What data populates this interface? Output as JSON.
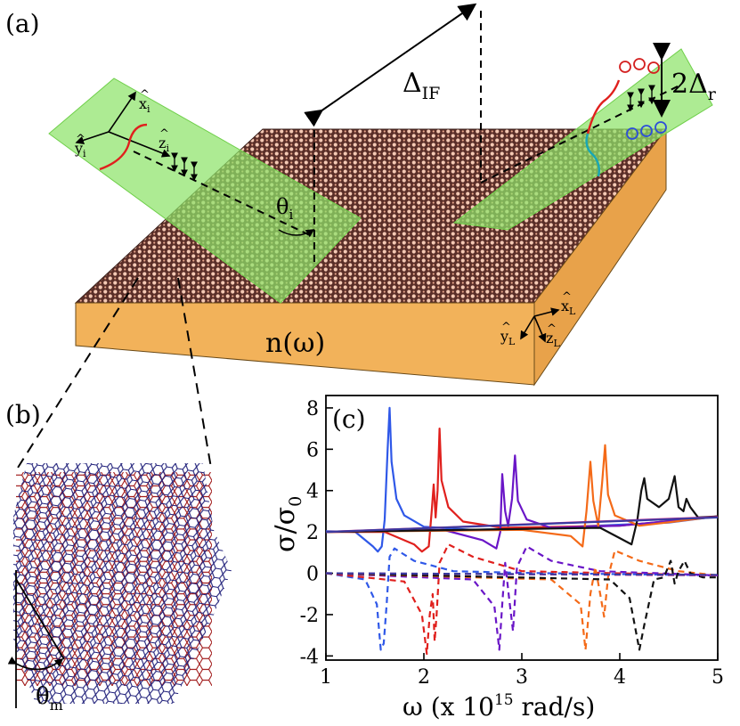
{
  "panels": {
    "a": "(a)",
    "b": "(b)",
    "c": "(c)"
  },
  "diagram": {
    "delta_if": {
      "base": "Δ",
      "sub": "IF"
    },
    "delta_r": {
      "prefix": "2Δ",
      "sub": "r"
    },
    "theta_i": {
      "base": "θ",
      "sub": "i"
    },
    "theta_m": {
      "base": "θ",
      "sub": "m"
    },
    "refractive_index": "n(ω)",
    "incident_axes": {
      "x": "x",
      "x_sub": "i",
      "y": "y",
      "y_sub": "i",
      "z": "z",
      "z_sub": "i",
      "hat": "^"
    },
    "lab_axes": {
      "x": "x",
      "x_sub": "L",
      "y": "y",
      "y_sub": "L",
      "z": "z",
      "z_sub": "L",
      "hat": "^"
    }
  },
  "colors": {
    "slab_top": "#b88570",
    "slab_side": "#f2b25a",
    "beam_plane": "#8ee36a",
    "lattice_red": "#a01818",
    "lattice_blue": "#1c1c78",
    "sigma_up": "#d42020",
    "sigma_down": "#2d4fd8",
    "spin_cyan": "#18a7b5"
  },
  "chart_data": {
    "type": "line",
    "title": "",
    "xlabel": {
      "text": "ω (x 10",
      "sup": "15",
      "tail": " rad/s)"
    },
    "ylabel": {
      "base": "σ/σ",
      "sub": "0"
    },
    "xlim": [
      1,
      5
    ],
    "ylim": [
      -4.2,
      8.6
    ],
    "xticks": [
      "1",
      "2",
      "3",
      "4",
      "5"
    ],
    "yticks": [
      "-4",
      "-2",
      "0",
      "2",
      "4",
      "6",
      "8"
    ],
    "series": [
      {
        "name": "blue",
        "color": "#2f58e8",
        "real": [
          [
            1,
            2.03
          ],
          [
            1.3,
            2.0
          ],
          [
            1.48,
            1.3
          ],
          [
            1.53,
            1.05
          ],
          [
            1.57,
            1.3
          ],
          [
            1.6,
            2.6
          ],
          [
            1.63,
            6.0
          ],
          [
            1.65,
            8.0
          ],
          [
            1.67,
            5.4
          ],
          [
            1.72,
            3.6
          ],
          [
            1.8,
            2.8
          ],
          [
            2.0,
            2.25
          ],
          [
            2.5,
            2.1
          ],
          [
            3.5,
            2.25
          ],
          [
            4.5,
            2.45
          ],
          [
            5.0,
            2.75
          ]
        ],
        "imag": [
          [
            1,
            0.0
          ],
          [
            1.4,
            -0.3
          ],
          [
            1.52,
            -1.5
          ],
          [
            1.56,
            -3.7
          ],
          [
            1.59,
            -3.4
          ],
          [
            1.62,
            -1.5
          ],
          [
            1.65,
            0.8
          ],
          [
            1.7,
            1.2
          ],
          [
            1.9,
            0.6
          ],
          [
            2.3,
            0.1
          ],
          [
            3.0,
            0.02
          ],
          [
            5.0,
            -0.1
          ]
        ]
      },
      {
        "name": "red",
        "color": "#e0201d",
        "real": [
          [
            1,
            2.0
          ],
          [
            1.6,
            2.0
          ],
          [
            1.9,
            1.4
          ],
          [
            1.98,
            1.05
          ],
          [
            2.05,
            1.3
          ],
          [
            2.08,
            3.0
          ],
          [
            2.1,
            4.3
          ],
          [
            2.12,
            2.7
          ],
          [
            2.14,
            4.0
          ],
          [
            2.16,
            7.0
          ],
          [
            2.18,
            4.5
          ],
          [
            2.25,
            3.2
          ],
          [
            2.4,
            2.5
          ],
          [
            2.8,
            2.2
          ],
          [
            4.0,
            2.3
          ],
          [
            5.0,
            2.75
          ]
        ],
        "imag": [
          [
            1,
            0.0
          ],
          [
            1.8,
            -0.4
          ],
          [
            1.98,
            -2.0
          ],
          [
            2.03,
            -3.9
          ],
          [
            2.06,
            -2.0
          ],
          [
            2.09,
            -1.0
          ],
          [
            2.11,
            -3.3
          ],
          [
            2.13,
            -2.0
          ],
          [
            2.16,
            0.5
          ],
          [
            2.25,
            1.4
          ],
          [
            2.5,
            0.8
          ],
          [
            3.0,
            0.1
          ],
          [
            5.0,
            -0.1
          ]
        ]
      },
      {
        "name": "purple",
        "color": "#6a16c7",
        "real": [
          [
            1,
            2.0
          ],
          [
            2.2,
            2.1
          ],
          [
            2.6,
            1.6
          ],
          [
            2.74,
            1.2
          ],
          [
            2.78,
            2.0
          ],
          [
            2.8,
            4.8
          ],
          [
            2.83,
            3.0
          ],
          [
            2.86,
            2.3
          ],
          [
            2.9,
            3.6
          ],
          [
            2.93,
            5.7
          ],
          [
            2.96,
            3.5
          ],
          [
            3.05,
            2.6
          ],
          [
            3.3,
            2.2
          ],
          [
            4.0,
            2.3
          ],
          [
            5.0,
            2.75
          ]
        ],
        "imag": [
          [
            1,
            0.0
          ],
          [
            2.5,
            -0.3
          ],
          [
            2.72,
            -1.6
          ],
          [
            2.77,
            -3.7
          ],
          [
            2.8,
            -1.5
          ],
          [
            2.83,
            0.5
          ],
          [
            2.87,
            -1.2
          ],
          [
            2.91,
            -2.8
          ],
          [
            2.95,
            0.3
          ],
          [
            3.05,
            1.3
          ],
          [
            3.3,
            0.6
          ],
          [
            3.8,
            0.1
          ],
          [
            5.0,
            -0.1
          ]
        ]
      },
      {
        "name": "orange",
        "color": "#f46a18",
        "real": [
          [
            1,
            2.0
          ],
          [
            3.0,
            2.1
          ],
          [
            3.5,
            1.8
          ],
          [
            3.62,
            1.3
          ],
          [
            3.66,
            3.0
          ],
          [
            3.7,
            5.4
          ],
          [
            3.73,
            3.5
          ],
          [
            3.78,
            2.3
          ],
          [
            3.82,
            4.4
          ],
          [
            3.85,
            6.2
          ],
          [
            3.88,
            3.8
          ],
          [
            3.95,
            2.8
          ],
          [
            4.2,
            2.3
          ],
          [
            5.0,
            2.75
          ]
        ],
        "imag": [
          [
            1,
            0.0
          ],
          [
            3.3,
            -0.3
          ],
          [
            3.6,
            -1.5
          ],
          [
            3.65,
            -3.7
          ],
          [
            3.7,
            -1.0
          ],
          [
            3.75,
            0.3
          ],
          [
            3.8,
            -1.0
          ],
          [
            3.84,
            -2.1
          ],
          [
            3.88,
            -0.2
          ],
          [
            3.95,
            1.1
          ],
          [
            4.2,
            0.6
          ],
          [
            4.6,
            0.1
          ],
          [
            5.0,
            -0.1
          ]
        ]
      },
      {
        "name": "black",
        "color": "#111111",
        "real": [
          [
            1,
            2.0
          ],
          [
            3.8,
            2.2
          ],
          [
            4.0,
            1.7
          ],
          [
            4.12,
            1.4
          ],
          [
            4.18,
            2.6
          ],
          [
            4.22,
            4.0
          ],
          [
            4.25,
            4.6
          ],
          [
            4.28,
            3.6
          ],
          [
            4.4,
            3.2
          ],
          [
            4.5,
            3.6
          ],
          [
            4.56,
            4.7
          ],
          [
            4.6,
            3.2
          ],
          [
            4.65,
            3.0
          ],
          [
            4.68,
            3.6
          ],
          [
            4.72,
            3.2
          ],
          [
            4.8,
            2.7
          ],
          [
            5.0,
            2.75
          ]
        ],
        "imag": [
          [
            1,
            0.0
          ],
          [
            3.9,
            -0.3
          ],
          [
            4.1,
            -1.2
          ],
          [
            4.2,
            -3.7
          ],
          [
            4.25,
            -2.5
          ],
          [
            4.35,
            -0.3
          ],
          [
            4.45,
            -0.2
          ],
          [
            4.52,
            0.6
          ],
          [
            4.56,
            -0.5
          ],
          [
            4.6,
            0.1
          ],
          [
            4.66,
            0.6
          ],
          [
            4.72,
            0.0
          ],
          [
            4.85,
            -0.2
          ],
          [
            5.0,
            -0.2
          ]
        ]
      },
      {
        "name": "magenta",
        "color": "#cc2a8e",
        "real": [
          [
            1,
            2.0
          ],
          [
            5.0,
            2.72
          ]
        ],
        "imag": [
          [
            1,
            0.0
          ],
          [
            5.0,
            -0.1
          ]
        ]
      },
      {
        "name": "navy",
        "color": "#3a3aa0",
        "real": [
          [
            1,
            2.0
          ],
          [
            5.0,
            2.7
          ]
        ],
        "imag": [
          [
            1,
            0.0
          ],
          [
            5.0,
            -0.08
          ]
        ]
      }
    ]
  }
}
